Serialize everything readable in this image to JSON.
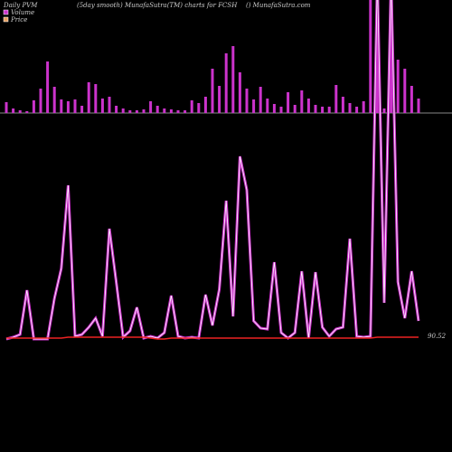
{
  "chart_data": {
    "type": "pvm",
    "title": "Daily PVM",
    "subtitle": "(5day smooth) MunafaSutra(TM) charts for FCSH",
    "source": "() MunafaSutra.com",
    "last_label": "90.52",
    "volume": {
      "name": "Volume",
      "color": "#cc33cc",
      "ylim": [
        0,
        125
      ],
      "values": [
        12,
        5,
        3,
        2,
        14,
        27,
        57,
        29,
        15,
        13,
        15,
        8,
        34,
        32,
        16,
        18,
        8,
        5,
        3,
        3,
        4,
        13,
        8,
        5,
        4,
        3,
        3,
        14,
        11,
        18,
        49,
        30,
        66,
        74,
        45,
        27,
        15,
        29,
        16,
        10,
        7,
        23,
        9,
        25,
        16,
        9,
        7,
        7,
        31,
        18,
        11,
        7,
        13,
        140,
        140,
        5,
        140,
        59,
        49,
        30,
        16
      ]
    },
    "pvm": {
      "name": "PVM",
      "color": "#cc33cc",
      "ylim": [
        0,
        375
      ],
      "values": [
        0,
        2,
        5,
        54,
        0,
        0,
        0,
        45,
        78,
        170,
        3,
        5,
        13,
        23,
        3,
        122,
        63,
        2,
        9,
        35,
        1,
        3,
        1,
        7,
        48,
        3,
        1,
        2,
        1,
        49,
        15,
        55,
        153,
        25,
        202,
        165,
        20,
        12,
        11,
        85,
        7,
        1,
        7,
        75,
        1,
        74,
        13,
        3,
        11,
        13,
        111,
        3,
        2,
        3,
        400,
        40,
        400,
        63,
        23,
        75,
        20
      ]
    },
    "price": {
      "name": "Price",
      "color": "#ee2222",
      "legend_color": "#e8a060",
      "ylim": [
        0,
        375
      ],
      "values": [
        1,
        1,
        1,
        1,
        1,
        1,
        1,
        1,
        1,
        2,
        2,
        2,
        2,
        2,
        2,
        2,
        2,
        2,
        2,
        2,
        2,
        1,
        0,
        0,
        1,
        1,
        1,
        1,
        1,
        1,
        1,
        1,
        1,
        1,
        1,
        1,
        1,
        1,
        1,
        1,
        1,
        1,
        1,
        1,
        1,
        1,
        1,
        1,
        1,
        1,
        1,
        1,
        1,
        1,
        2,
        2,
        2,
        2,
        2,
        2,
        2
      ]
    }
  }
}
